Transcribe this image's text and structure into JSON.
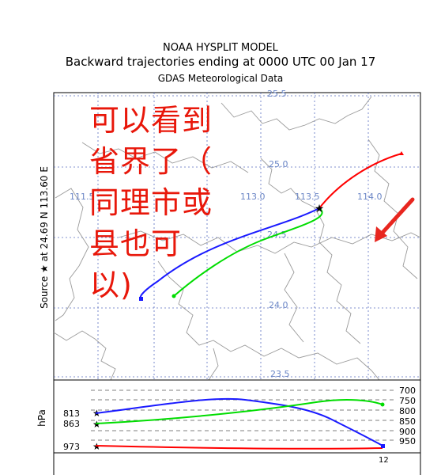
{
  "header": {
    "line1": "NOAA HYSPLIT MODEL",
    "line2": "Backward trajectories ending at 0000 UTC 00 Jan 17",
    "line3": "GDAS Meteorological Data"
  },
  "side_label": "Source ★ at   24.69 N   113.60 E",
  "map": {
    "lat_labels": [
      "25.5",
      "25.0",
      "24.5",
      "24.0",
      "23.5"
    ],
    "lon_labels": [
      "111.5",
      "113.0",
      "113.5",
      "114.0"
    ],
    "source_marker": "star-icon",
    "arrow_color": "#e8261f"
  },
  "annotation": {
    "lines": [
      "可以看到",
      "省界了（",
      "同理市或",
      "县也可",
      "以)"
    ],
    "color": "#e8170a"
  },
  "vertical_panel": {
    "axis_label": "hPa",
    "right_levels": [
      "700",
      "750",
      "800",
      "850",
      "900",
      "950"
    ],
    "start_levels": [
      "813",
      "863",
      "973"
    ],
    "time_label": "12"
  },
  "series_colors": {
    "red": "#ff0000",
    "blue": "#1a1aff",
    "green": "#00dd00"
  }
}
